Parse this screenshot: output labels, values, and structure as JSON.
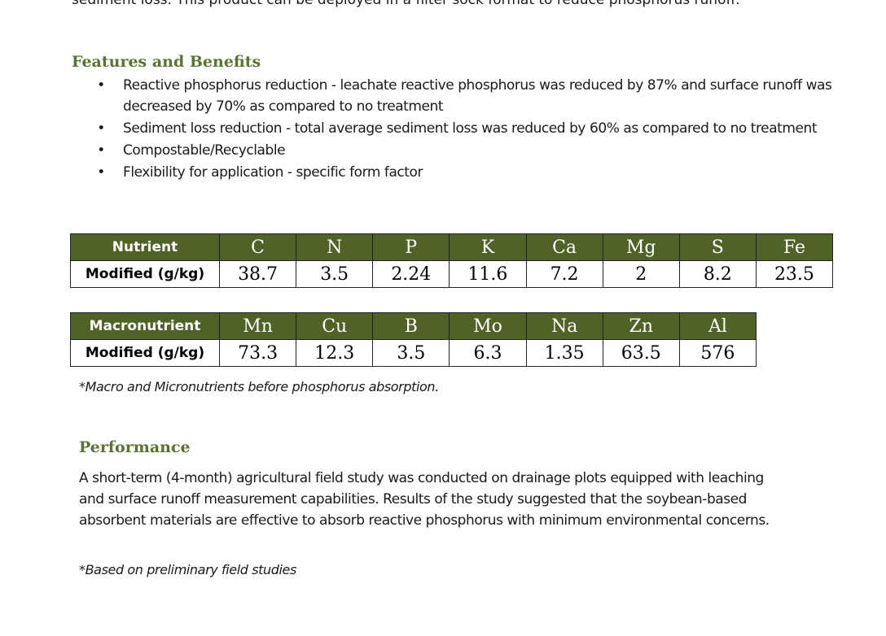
{
  "intro": {
    "text": "sediment loss.  This product can be deployed in a filter sock format to reduce phosphorus runoff."
  },
  "features": {
    "heading": "Features and Benefits",
    "bullet_glyph": "•",
    "items": [
      "Reactive phosphorus reduction - leachate reactive phosphorus was reduced by 87% and surface runoff was decreased by 70% as compared to no treatment",
      "Sediment loss reduction - total average sediment loss was reduced by 60% as compared to no treatment",
      "Compostable/Recyclable",
      "Flexibility for application - specific form factor"
    ]
  },
  "table1": {
    "header_label": "Nutrient",
    "row_label": "Modified (g/kg)",
    "columns": [
      "C",
      "N",
      "P",
      "K",
      "Ca",
      "Mg",
      "S",
      "Fe"
    ],
    "values": [
      "38.7",
      "3.5",
      "2.24",
      "11.6",
      "7.2",
      "2",
      "8.2",
      "23.5"
    ]
  },
  "table2": {
    "header_label": "Macronutrient",
    "row_label": "Modified (g/kg)",
    "columns": [
      "Mn",
      "Cu",
      "B",
      "Mo",
      "Na",
      "Zn",
      "Al"
    ],
    "values": [
      "73.3",
      "12.3",
      "3.5",
      "6.3",
      "1.35",
      "63.5",
      "576"
    ]
  },
  "table_note": "*Macro and Micronutrients before phosphorus absorption.",
  "performance": {
    "heading": "Performance",
    "paragraph": "A short-term (4-month) agricultural field study was conducted on drainage plots equipped with leaching and surface runoff measurement capabilities.  Results of the study suggested that the soybean-based absorbent materials are effective to absorb reactive phosphorus with minimum environmental concerns.",
    "footnote": "*Based on preliminary field studies"
  },
  "colors": {
    "heading_green": "#5b7332",
    "table_header_green": "#4f6228"
  }
}
